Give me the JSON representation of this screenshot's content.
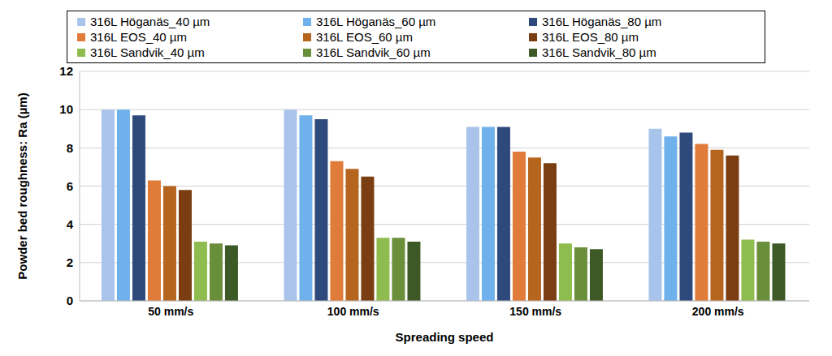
{
  "chart_data": {
    "type": "bar",
    "x_label": "Spreading speed",
    "y_label": "Powder bed roughness: Ra (µm)",
    "categories": [
      "50 mm/s",
      "100 mm/s",
      "150 mm/s",
      "200 mm/s"
    ],
    "series": [
      {
        "name": "316L Höganäs_40 µm",
        "color": "#a9c4eb",
        "values": [
          10.0,
          10.0,
          9.1,
          9.0
        ]
      },
      {
        "name": "316L Höganäs_60 µm",
        "color": "#6fb1ea",
        "values": [
          10.0,
          9.7,
          9.1,
          8.6
        ]
      },
      {
        "name": "316L Höganäs_80 µm",
        "color": "#2e4a7d",
        "values": [
          9.7,
          9.5,
          9.1,
          8.8
        ]
      },
      {
        "name": "316L EOS_40 µm",
        "color": "#e07b39",
        "values": [
          6.3,
          7.3,
          7.8,
          8.2
        ]
      },
      {
        "name": "316L EOS_60 µm",
        "color": "#b5651d",
        "values": [
          6.0,
          6.9,
          7.5,
          7.9
        ]
      },
      {
        "name": "316L EOS_80 µm",
        "color": "#7a3e12",
        "values": [
          5.8,
          6.5,
          7.2,
          7.6
        ]
      },
      {
        "name": "316L Sandvik_40 µm",
        "color": "#8fbc4f",
        "values": [
          3.1,
          3.3,
          3.0,
          3.2
        ]
      },
      {
        "name": "316L Sandvik_60 µm",
        "color": "#6a8f3a",
        "values": [
          3.0,
          3.3,
          2.8,
          3.1
        ]
      },
      {
        "name": "316L Sandvik_80 µm",
        "color": "#3d5a26",
        "values": [
          2.9,
          3.1,
          2.7,
          3.0
        ]
      }
    ],
    "ylim": [
      0,
      12
    ],
    "yticks": [
      0,
      2,
      4,
      6,
      8,
      10,
      12
    ],
    "grid": true,
    "legend": "top"
  }
}
